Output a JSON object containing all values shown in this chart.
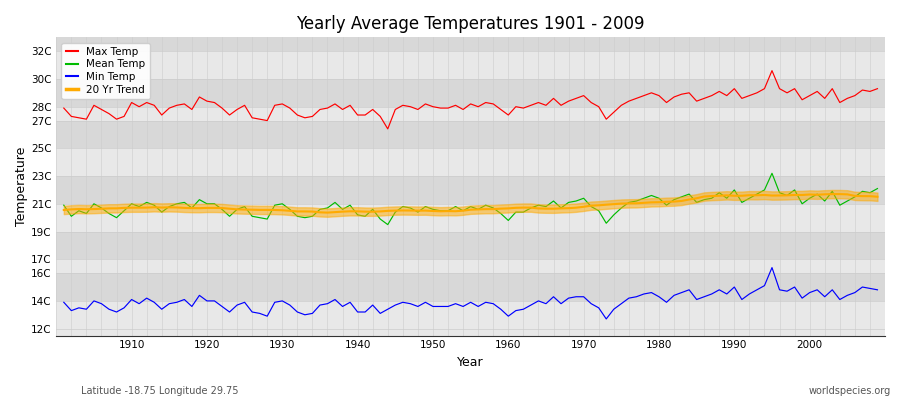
{
  "title": "Yearly Average Temperatures 1901 - 2009",
  "xlabel": "Year",
  "ylabel": "Temperature",
  "subtitle": "Latitude -18.75 Longitude 29.75",
  "watermark": "worldspecies.org",
  "years_start": 1901,
  "years_end": 2009,
  "yticks": [
    12,
    14,
    16,
    17,
    19,
    21,
    23,
    25,
    27,
    28,
    30,
    32
  ],
  "ytick_labels": [
    "12C",
    "14C",
    "16C",
    "17C",
    "19C",
    "21C",
    "23C",
    "25C",
    "27C",
    "28C",
    "30C",
    "32C"
  ],
  "ylim": [
    11.5,
    33.0
  ],
  "xlim": [
    1900,
    2010
  ],
  "bg_color": "#ffffff",
  "band_colors": [
    "#e8e8e8",
    "#d8d8d8"
  ],
  "grid_color": "#cccccc",
  "legend_labels": [
    "Max Temp",
    "Mean Temp",
    "Min Temp",
    "20 Yr Trend"
  ],
  "legend_colors": [
    "#ff0000",
    "#00bb00",
    "#0000ff",
    "#ffaa00"
  ],
  "max_temps": [
    27.9,
    27.3,
    27.2,
    27.1,
    28.1,
    27.8,
    27.5,
    27.1,
    27.3,
    28.3,
    28.0,
    28.3,
    28.1,
    27.4,
    27.9,
    28.1,
    28.2,
    27.8,
    28.7,
    28.4,
    28.3,
    27.9,
    27.4,
    27.8,
    28.1,
    27.2,
    27.1,
    27.0,
    28.1,
    28.2,
    27.9,
    27.4,
    27.2,
    27.3,
    27.8,
    27.9,
    28.2,
    27.8,
    28.1,
    27.4,
    27.4,
    27.8,
    27.3,
    26.4,
    27.8,
    28.1,
    28.0,
    27.8,
    28.2,
    28.0,
    27.9,
    27.9,
    28.1,
    27.8,
    28.2,
    28.0,
    28.3,
    28.2,
    27.8,
    27.4,
    28.0,
    27.9,
    28.1,
    28.3,
    28.1,
    28.6,
    28.1,
    28.4,
    28.6,
    28.8,
    28.3,
    28.0,
    27.1,
    27.6,
    28.1,
    28.4,
    28.6,
    28.8,
    29.0,
    28.8,
    28.3,
    28.7,
    28.9,
    29.0,
    28.4,
    28.6,
    28.8,
    29.1,
    28.8,
    29.3,
    28.6,
    28.8,
    29.0,
    29.3,
    30.6,
    29.3,
    29.0,
    29.3,
    28.5,
    28.8,
    29.1,
    28.6,
    29.3,
    28.3,
    28.6,
    28.8,
    29.2,
    29.1,
    29.3
  ],
  "mean_temps": [
    20.9,
    20.1,
    20.5,
    20.3,
    21.0,
    20.7,
    20.3,
    20.0,
    20.5,
    21.0,
    20.8,
    21.1,
    20.9,
    20.4,
    20.8,
    21.0,
    21.1,
    20.7,
    21.3,
    21.0,
    21.0,
    20.6,
    20.1,
    20.6,
    20.8,
    20.1,
    20.0,
    19.9,
    20.9,
    21.0,
    20.6,
    20.1,
    20.0,
    20.1,
    20.6,
    20.7,
    21.1,
    20.6,
    20.9,
    20.2,
    20.1,
    20.6,
    19.9,
    19.5,
    20.4,
    20.8,
    20.7,
    20.4,
    20.8,
    20.6,
    20.5,
    20.5,
    20.8,
    20.5,
    20.8,
    20.6,
    20.9,
    20.7,
    20.3,
    19.8,
    20.4,
    20.4,
    20.7,
    20.9,
    20.8,
    21.2,
    20.7,
    21.1,
    21.2,
    21.4,
    20.8,
    20.5,
    19.6,
    20.2,
    20.7,
    21.1,
    21.2,
    21.4,
    21.6,
    21.4,
    20.9,
    21.3,
    21.5,
    21.7,
    21.1,
    21.3,
    21.4,
    21.8,
    21.4,
    22.0,
    21.1,
    21.4,
    21.7,
    22.0,
    23.2,
    21.8,
    21.6,
    22.0,
    21.0,
    21.4,
    21.7,
    21.2,
    21.9,
    20.9,
    21.2,
    21.5,
    21.9,
    21.8,
    22.1
  ],
  "min_temps": [
    13.9,
    13.3,
    13.5,
    13.4,
    14.0,
    13.8,
    13.4,
    13.2,
    13.5,
    14.1,
    13.8,
    14.2,
    13.9,
    13.4,
    13.8,
    13.9,
    14.1,
    13.6,
    14.4,
    14.0,
    14.0,
    13.6,
    13.2,
    13.7,
    13.9,
    13.2,
    13.1,
    12.9,
    13.9,
    14.0,
    13.7,
    13.2,
    13.0,
    13.1,
    13.7,
    13.8,
    14.1,
    13.6,
    13.9,
    13.2,
    13.2,
    13.7,
    13.1,
    13.4,
    13.7,
    13.9,
    13.8,
    13.6,
    13.9,
    13.6,
    13.6,
    13.6,
    13.8,
    13.6,
    13.9,
    13.6,
    13.9,
    13.8,
    13.4,
    12.9,
    13.3,
    13.4,
    13.7,
    14.0,
    13.8,
    14.3,
    13.8,
    14.2,
    14.3,
    14.3,
    13.8,
    13.5,
    12.7,
    13.4,
    13.8,
    14.2,
    14.3,
    14.5,
    14.6,
    14.3,
    13.9,
    14.4,
    14.6,
    14.8,
    14.1,
    14.3,
    14.5,
    14.8,
    14.5,
    15.0,
    14.1,
    14.5,
    14.8,
    15.1,
    16.4,
    14.8,
    14.7,
    15.0,
    14.2,
    14.6,
    14.8,
    14.3,
    14.8,
    14.1,
    14.4,
    14.6,
    15.0,
    14.9,
    14.8
  ]
}
